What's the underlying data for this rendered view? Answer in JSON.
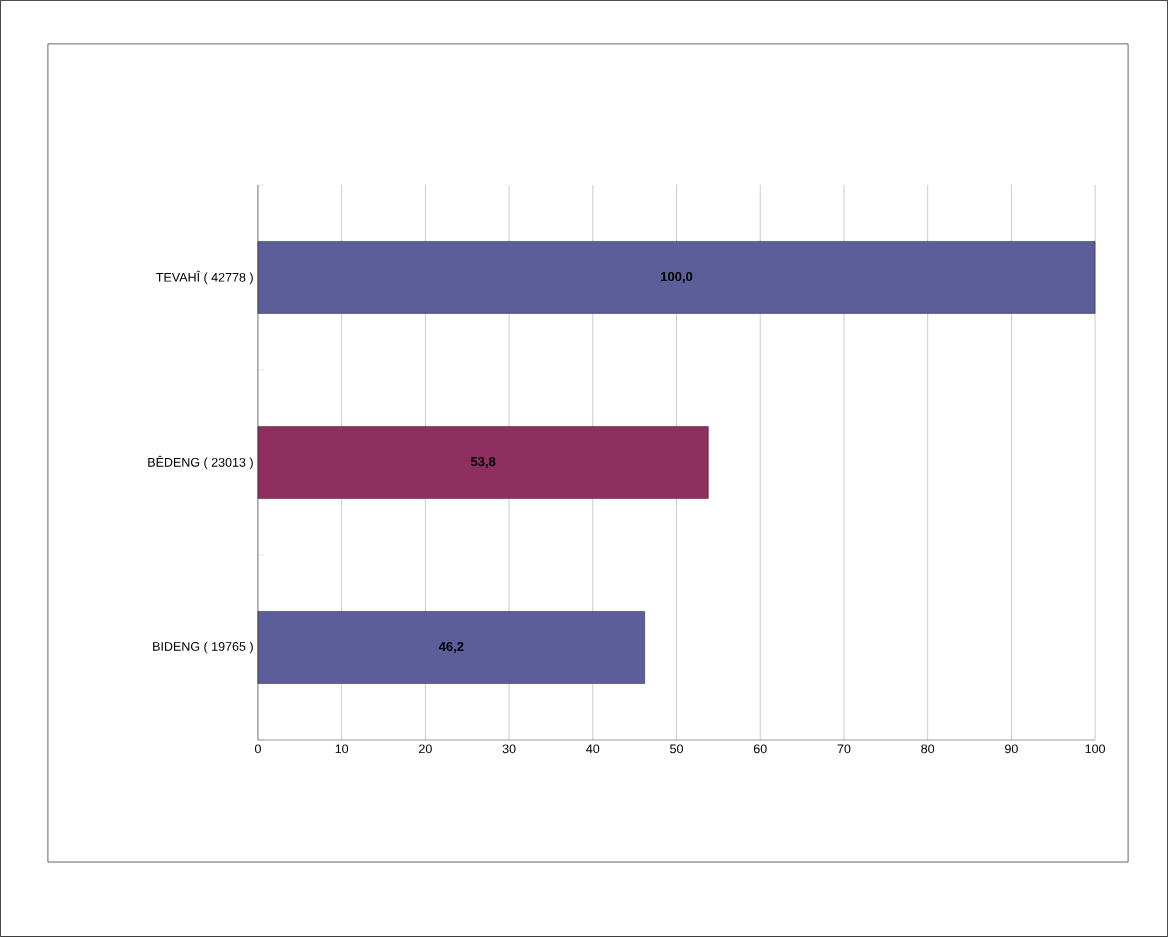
{
  "chart_data": {
    "type": "bar",
    "orientation": "horizontal",
    "categories": [
      "TEVAHÎ ( 42778 )",
      "BÊDENG ( 23013 )",
      "BIDENG ( 19765 )"
    ],
    "values": [
      100.0,
      53.8,
      46.2
    ],
    "value_labels": [
      "100,0",
      "53,8",
      "46,2"
    ],
    "colors": [
      "#5b5e98",
      "#8e2f60",
      "#5b5e98"
    ],
    "xlim": [
      0,
      100
    ],
    "xticks": [
      0,
      10,
      20,
      30,
      40,
      50,
      60,
      70,
      80,
      90,
      100
    ],
    "grid": "x"
  }
}
